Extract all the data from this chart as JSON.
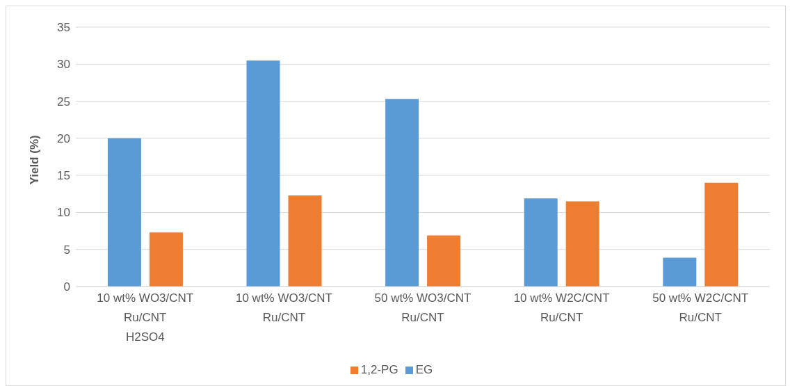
{
  "chart_data": {
    "type": "bar",
    "ylabel": "Yield (%)",
    "categories": [
      "10 wt% WO3/CNT\nRu/CNT\nH2SO4",
      "10 wt% WO3/CNT\nRu/CNT",
      "50 wt% WO3/CNT\nRu/CNT",
      "10 wt% W2C/CNT\nRu/CNT",
      "50 wt% W2C/CNT\nRu/CNT"
    ],
    "series": [
      {
        "name": "EG",
        "color": "#5b9bd5",
        "values": [
          20.0,
          30.5,
          25.3,
          11.9,
          3.9
        ]
      },
      {
        "name": "1,2-PG",
        "color": "#ed7d31",
        "values": [
          7.3,
          12.3,
          6.9,
          11.5,
          14.0
        ]
      }
    ],
    "ylim": [
      0,
      35
    ],
    "yticks": [
      0,
      5,
      10,
      15,
      20,
      25,
      30,
      35
    ],
    "grid": "y",
    "legend": "bottom"
  }
}
